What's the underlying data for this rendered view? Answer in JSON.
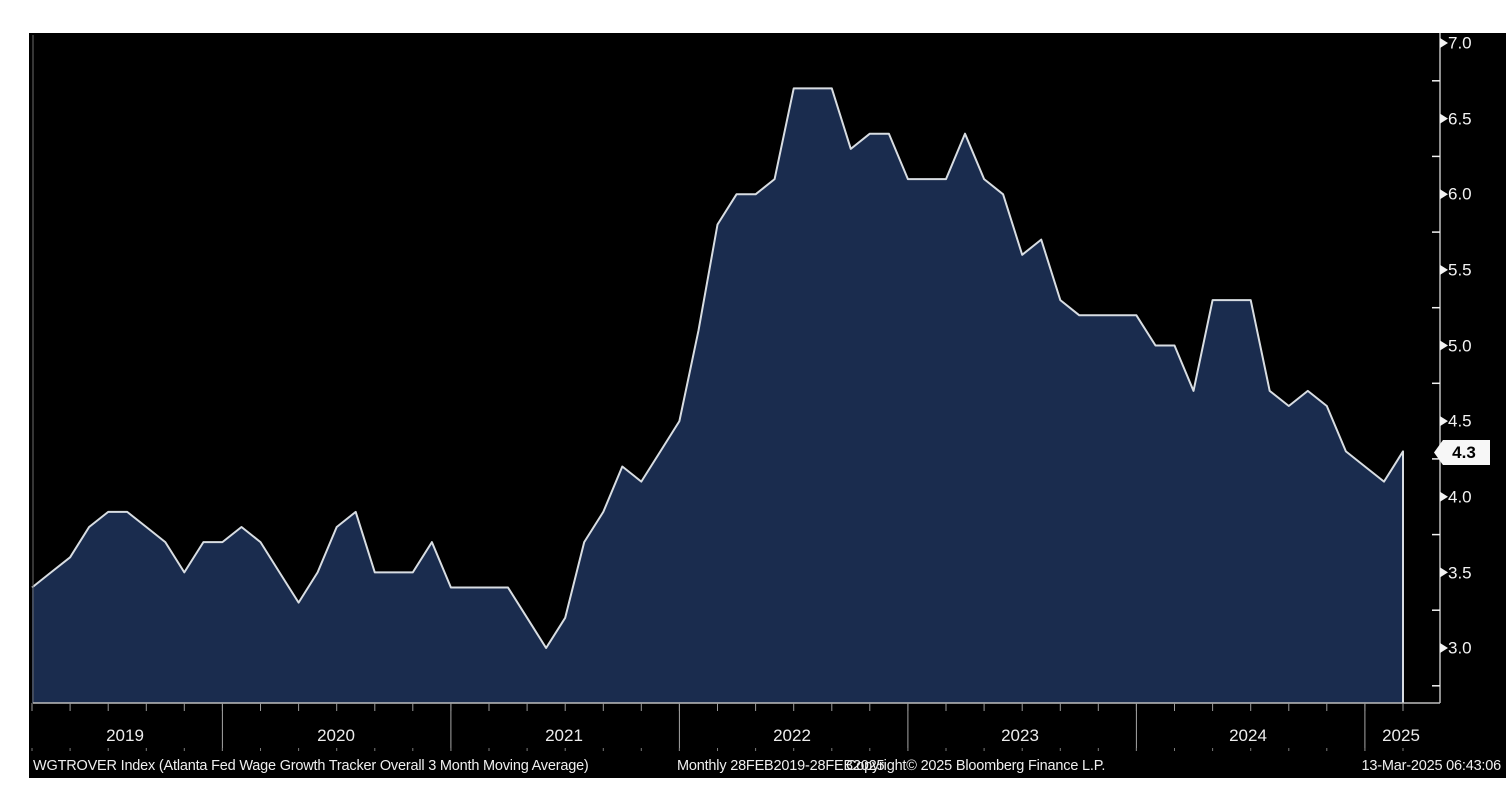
{
  "chart_data": {
    "type": "area",
    "title": "WGTROVER Index (Atlanta Fed Wage Growth Tracker Overall 3 Month Moving Average)",
    "frequency_note": "Monthly 28FEB2019-28FEB2025",
    "copyright": "Copyright© 2025 Bloomberg Finance L.P.",
    "timestamp": "13-Mar-2025 06:43:06",
    "last_value": "4.3",
    "grid": "off",
    "legend": "none",
    "xlabel": "",
    "ylabel": "",
    "axis_range": {
      "y_top": 7.07,
      "y_bottom": 2.64,
      "x_start": "2019-02",
      "x_end": "2025-02"
    },
    "y_tick_labels": [
      "7.0",
      "6.5",
      "6.0",
      "5.5",
      "5.0",
      "4.5",
      "4.0",
      "3.5",
      "3.0"
    ],
    "y_minor_step": 0.25,
    "x_year_labels": [
      "2019",
      "2020",
      "2021",
      "2022",
      "2023",
      "2024",
      "2025"
    ],
    "x": [
      "2019-02",
      "2019-03",
      "2019-04",
      "2019-05",
      "2019-06",
      "2019-07",
      "2019-08",
      "2019-09",
      "2019-10",
      "2019-11",
      "2019-12",
      "2020-01",
      "2020-02",
      "2020-03",
      "2020-04",
      "2020-05",
      "2020-06",
      "2020-07",
      "2020-08",
      "2020-09",
      "2020-10",
      "2020-11",
      "2020-12",
      "2021-01",
      "2021-02",
      "2021-03",
      "2021-04",
      "2021-05",
      "2021-06",
      "2021-07",
      "2021-08",
      "2021-09",
      "2021-10",
      "2021-11",
      "2021-12",
      "2022-01",
      "2022-02",
      "2022-03",
      "2022-04",
      "2022-05",
      "2022-06",
      "2022-07",
      "2022-08",
      "2022-09",
      "2022-10",
      "2022-11",
      "2022-12",
      "2023-01",
      "2023-02",
      "2023-03",
      "2023-04",
      "2023-05",
      "2023-06",
      "2023-07",
      "2023-08",
      "2023-09",
      "2023-10",
      "2023-11",
      "2023-12",
      "2024-01",
      "2024-02",
      "2024-03",
      "2024-04",
      "2024-05",
      "2024-06",
      "2024-07",
      "2024-08",
      "2024-09",
      "2024-10",
      "2024-11",
      "2024-12",
      "2025-01",
      "2025-02"
    ],
    "series": [
      {
        "name": "WGTROVER Index",
        "values": [
          3.4,
          3.5,
          3.6,
          3.8,
          3.9,
          3.9,
          3.8,
          3.7,
          3.5,
          3.7,
          3.7,
          3.8,
          3.7,
          3.5,
          3.3,
          3.5,
          3.8,
          3.9,
          3.5,
          3.5,
          3.5,
          3.7,
          3.4,
          3.4,
          3.4,
          3.4,
          3.2,
          3.0,
          3.2,
          3.7,
          3.9,
          4.2,
          4.1,
          4.3,
          4.5,
          5.1,
          5.8,
          6.0,
          6.0,
          6.1,
          6.7,
          6.7,
          6.7,
          6.3,
          6.4,
          6.4,
          6.1,
          6.1,
          6.1,
          6.4,
          6.1,
          6.0,
          5.6,
          5.7,
          5.3,
          5.2,
          5.2,
          5.2,
          5.2,
          5.0,
          5.0,
          4.7,
          5.3,
          5.3,
          5.3,
          4.7,
          4.6,
          4.7,
          4.6,
          4.3,
          4.2,
          4.1,
          4.3
        ]
      }
    ]
  },
  "colors": {
    "page_bg": "#ffffff",
    "plot_bg": "#000000",
    "area_fill": "#1a2c4e",
    "line": "#d8dde2",
    "border": "#bebebe",
    "separator": "#a8a8a8",
    "minor_tick": "#9a9a9a",
    "axis_text": "#f2f2f2",
    "tag_bg": "#f7f7f7",
    "tag_text": "#000000"
  }
}
